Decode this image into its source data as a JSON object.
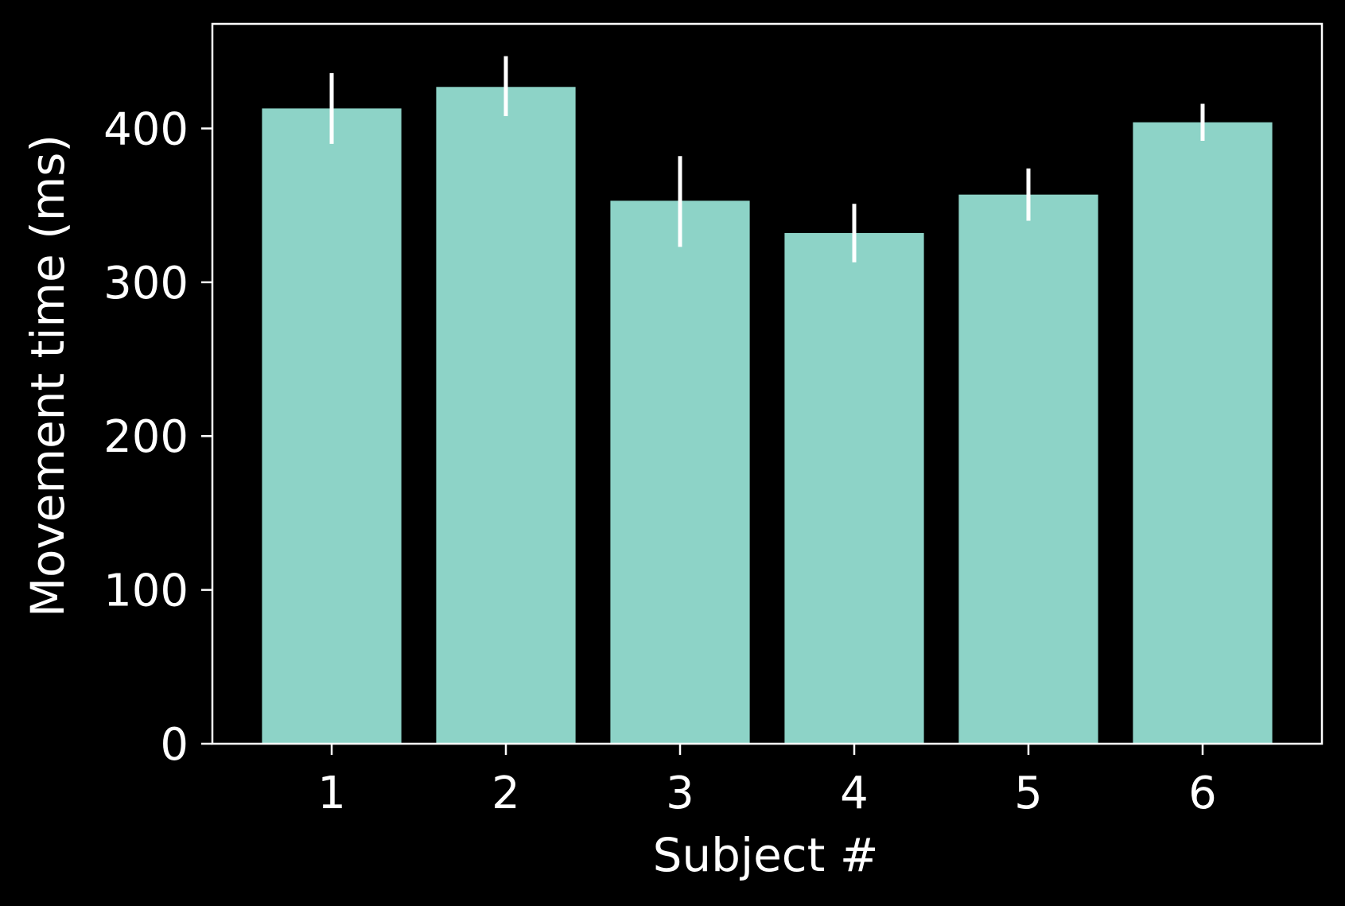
{
  "chart_data": {
    "type": "bar",
    "title": "",
    "xlabel": "Subject #",
    "ylabel": "Movement time (ms)",
    "categories": [
      "1",
      "2",
      "3",
      "4",
      "5",
      "6"
    ],
    "values": [
      413,
      427,
      353,
      332,
      357,
      404
    ],
    "error": [
      [
        390,
        436
      ],
      [
        408,
        447
      ],
      [
        323,
        382
      ],
      [
        313,
        351
      ],
      [
        340,
        374
      ],
      [
        392,
        416
      ]
    ],
    "yticks": [
      "0",
      "100",
      "200",
      "300",
      "400"
    ],
    "ylim": [
      0,
      468
    ],
    "grid": false,
    "legend": "none",
    "colors": {
      "background": "#000000",
      "bar": "#8dd3c7",
      "axis": "#ffffff",
      "errorbar": "#ffffff"
    }
  }
}
